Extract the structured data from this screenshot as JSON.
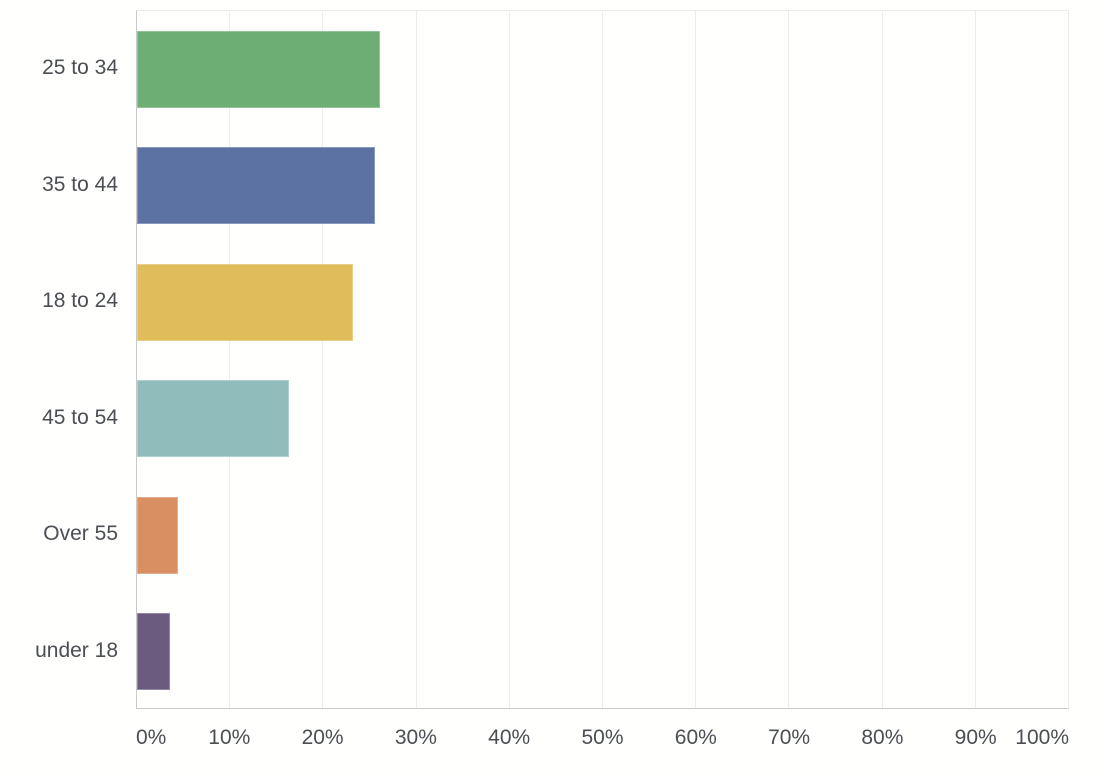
{
  "chart_data": {
    "type": "bar",
    "orientation": "horizontal",
    "title": "",
    "xlabel": "",
    "ylabel": "",
    "categories": [
      "25 to 34",
      "35 to 44",
      "18 to 24",
      "45 to 54",
      "Over 55",
      "under 18"
    ],
    "values": [
      26.1,
      25.5,
      23.2,
      16.3,
      4.4,
      3.5
    ],
    "unit": "%",
    "bar_colors": [
      "#6cae74",
      "#5b72a2",
      "#e0bc5b",
      "#90bdbb",
      "#d98f62",
      "#6a5b7f"
    ],
    "xlim": [
      0,
      100
    ],
    "xticks": [
      0,
      10,
      20,
      30,
      40,
      50,
      60,
      70,
      80,
      90,
      100
    ],
    "xtick_labels": [
      "0%",
      "10%",
      "20%",
      "30%",
      "40%",
      "50%",
      "60%",
      "70%",
      "80%",
      "90%",
      "100%"
    ],
    "grid": "vertical",
    "legend": "none",
    "colors": {
      "background": "#fffffe",
      "gridline": "#ececec",
      "axis_line": "#c9c9c9",
      "text": "#4b4e53"
    }
  }
}
